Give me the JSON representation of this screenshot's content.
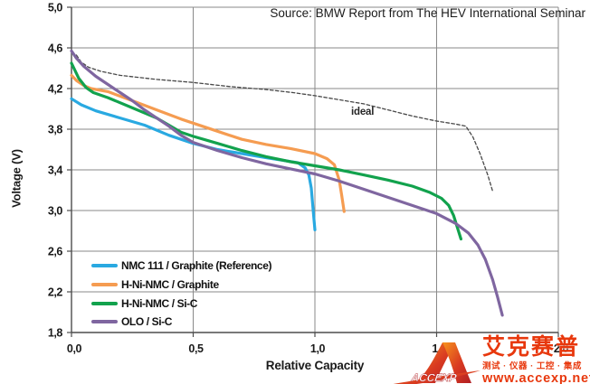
{
  "chart_data": {
    "type": "line",
    "source_note": "Source: BMW Report from The HEV International Seminar",
    "xlabel": "Relative Capacity",
    "ylabel": "Voltage (V)",
    "xlim": [
      0.0,
      2.0
    ],
    "ylim": [
      1.8,
      5.0
    ],
    "grid": true,
    "grid_color": "#8a8a8a",
    "axis_color": "#4d4d4d",
    "tick_text_color": "#1a1a1a",
    "xticks": [
      {
        "v": 0.0,
        "label": "0,0"
      },
      {
        "v": 0.5,
        "label": "0,5"
      },
      {
        "v": 1.0,
        "label": "1,0"
      },
      {
        "v": 1.5,
        "label": "1,5"
      },
      {
        "v": 2.0,
        "label": "2,0"
      }
    ],
    "yticks": [
      {
        "v": 1.8,
        "label": "1,8"
      },
      {
        "v": 2.2,
        "label": "2,2"
      },
      {
        "v": 2.6,
        "label": "2,6"
      },
      {
        "v": 3.0,
        "label": "3,0"
      },
      {
        "v": 3.4,
        "label": "3,4"
      },
      {
        "v": 3.8,
        "label": "3,8"
      },
      {
        "v": 4.2,
        "label": "4,2"
      },
      {
        "v": 4.6,
        "label": "4,6"
      },
      {
        "v": 5.0,
        "label": "5,0"
      }
    ],
    "annotation": {
      "text": "ideal",
      "x": 1.21,
      "y": 3.97
    },
    "legend_position": "lower-left",
    "series": [
      {
        "name": "ideal",
        "color": "#474747",
        "width": 1.3,
        "dash": "3.5 2.5",
        "in_legend": false,
        "points": [
          [
            0.02,
            4.53
          ],
          [
            0.04,
            4.46
          ],
          [
            0.07,
            4.41
          ],
          [
            0.12,
            4.37
          ],
          [
            0.2,
            4.33
          ],
          [
            0.35,
            4.29
          ],
          [
            0.5,
            4.26
          ],
          [
            0.65,
            4.22
          ],
          [
            0.8,
            4.19
          ],
          [
            0.91,
            4.16
          ],
          [
            1.0,
            4.13
          ],
          [
            1.1,
            4.09
          ],
          [
            1.2,
            4.05
          ],
          [
            1.3,
            3.99
          ],
          [
            1.4,
            3.93
          ],
          [
            1.5,
            3.88
          ],
          [
            1.58,
            3.85
          ],
          [
            1.62,
            3.83
          ],
          [
            1.65,
            3.72
          ],
          [
            1.68,
            3.55
          ],
          [
            1.71,
            3.35
          ],
          [
            1.73,
            3.19
          ]
        ]
      },
      {
        "name": "NMC 111 / Graphite (Reference)",
        "color": "#29a9e1",
        "width": 3.2,
        "dash": "",
        "in_legend": true,
        "points": [
          [
            0.0,
            4.1
          ],
          [
            0.04,
            4.04
          ],
          [
            0.1,
            3.98
          ],
          [
            0.2,
            3.91
          ],
          [
            0.3,
            3.84
          ],
          [
            0.4,
            3.74
          ],
          [
            0.5,
            3.66
          ],
          [
            0.6,
            3.6
          ],
          [
            0.7,
            3.56
          ],
          [
            0.8,
            3.52
          ],
          [
            0.88,
            3.49
          ],
          [
            0.93,
            3.47
          ],
          [
            0.96,
            3.42
          ],
          [
            0.975,
            3.35
          ],
          [
            0.985,
            3.22
          ],
          [
            0.993,
            3.0
          ],
          [
            1.0,
            2.81
          ]
        ]
      },
      {
        "name": "H-Ni-NMC / Graphite",
        "color": "#f59c51",
        "width": 3.2,
        "dash": "",
        "in_legend": true,
        "points": [
          [
            0.0,
            4.33
          ],
          [
            0.02,
            4.28
          ],
          [
            0.05,
            4.23
          ],
          [
            0.08,
            4.2
          ],
          [
            0.15,
            4.17
          ],
          [
            0.25,
            4.08
          ],
          [
            0.35,
            3.99
          ],
          [
            0.45,
            3.9
          ],
          [
            0.5,
            3.86
          ],
          [
            0.55,
            3.82
          ],
          [
            0.6,
            3.78
          ],
          [
            0.7,
            3.7
          ],
          [
            0.8,
            3.65
          ],
          [
            0.9,
            3.61
          ],
          [
            1.0,
            3.56
          ],
          [
            1.05,
            3.51
          ],
          [
            1.08,
            3.45
          ],
          [
            1.1,
            3.3
          ],
          [
            1.11,
            3.15
          ],
          [
            1.12,
            2.99
          ]
        ]
      },
      {
        "name": "H-Ni-NMC / Si-C",
        "color": "#12a24d",
        "width": 3.2,
        "dash": "",
        "in_legend": true,
        "points": [
          [
            0.0,
            4.45
          ],
          [
            0.03,
            4.3
          ],
          [
            0.06,
            4.21
          ],
          [
            0.09,
            4.16
          ],
          [
            0.15,
            4.11
          ],
          [
            0.25,
            4.01
          ],
          [
            0.35,
            3.91
          ],
          [
            0.45,
            3.77
          ],
          [
            0.5,
            3.73
          ],
          [
            0.6,
            3.66
          ],
          [
            0.7,
            3.59
          ],
          [
            0.8,
            3.53
          ],
          [
            0.9,
            3.48
          ],
          [
            1.0,
            3.44
          ],
          [
            1.1,
            3.4
          ],
          [
            1.2,
            3.35
          ],
          [
            1.3,
            3.3
          ],
          [
            1.4,
            3.24
          ],
          [
            1.47,
            3.18
          ],
          [
            1.52,
            3.12
          ],
          [
            1.55,
            3.05
          ],
          [
            1.57,
            2.95
          ],
          [
            1.6,
            2.72
          ]
        ]
      },
      {
        "name": "OLO / Si-C",
        "color": "#7f66a0",
        "width": 3.2,
        "dash": "",
        "in_legend": true,
        "points": [
          [
            0.0,
            4.57
          ],
          [
            0.02,
            4.5
          ],
          [
            0.05,
            4.42
          ],
          [
            0.1,
            4.32
          ],
          [
            0.15,
            4.24
          ],
          [
            0.2,
            4.16
          ],
          [
            0.25,
            4.08
          ],
          [
            0.3,
            3.99
          ],
          [
            0.35,
            3.91
          ],
          [
            0.4,
            3.83
          ],
          [
            0.45,
            3.74
          ],
          [
            0.5,
            3.67
          ],
          [
            0.6,
            3.59
          ],
          [
            0.7,
            3.52
          ],
          [
            0.8,
            3.46
          ],
          [
            0.9,
            3.41
          ],
          [
            1.0,
            3.36
          ],
          [
            1.1,
            3.29
          ],
          [
            1.2,
            3.21
          ],
          [
            1.3,
            3.13
          ],
          [
            1.4,
            3.05
          ],
          [
            1.5,
            2.97
          ],
          [
            1.58,
            2.87
          ],
          [
            1.63,
            2.78
          ],
          [
            1.67,
            2.66
          ],
          [
            1.7,
            2.52
          ],
          [
            1.73,
            2.32
          ],
          [
            1.75,
            2.15
          ],
          [
            1.77,
            1.97
          ]
        ]
      }
    ]
  },
  "watermark": {
    "logo_text": "ACCEXP",
    "brand": "艾克赛普",
    "slogan": "测试 · 仪器 · 工控 · 集成",
    "url": "www.accexp.net",
    "brand_color": "#e8380d",
    "logo_gradient": [
      "#f7941d",
      "#d93a21",
      "#b01e23"
    ]
  }
}
